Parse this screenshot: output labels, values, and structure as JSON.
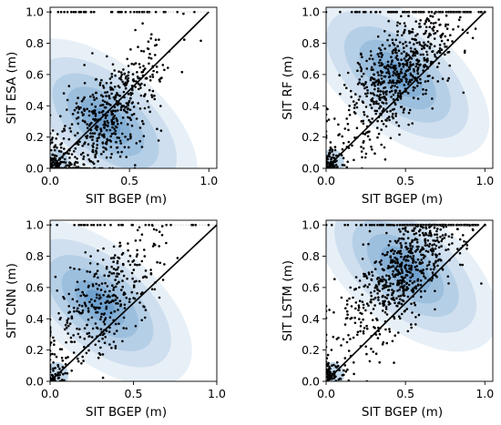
{
  "chart_data": [
    {
      "type": "scatter",
      "xlabel": "SIT BGEP (m)",
      "ylabel": "SIT ESA (m)",
      "xlim": [
        0,
        1.05
      ],
      "ylim": [
        0,
        1.03
      ],
      "x_ticks": [
        "0.0",
        "0.5",
        "1.0"
      ],
      "y_ticks": [
        "0.0",
        "0.2",
        "0.4",
        "0.6",
        "0.8",
        "1.0"
      ],
      "grid": false,
      "density_center": [
        0.35,
        0.3
      ],
      "approx_point_count": 700,
      "reference_line": [
        [
          0,
          0
        ],
        [
          1,
          1
        ]
      ],
      "point_color": "#000000",
      "density_color": "#1f6fb4"
    },
    {
      "type": "scatter",
      "xlabel": "SIT BGEP (m)",
      "ylabel": "SIT RF (m)",
      "xlim": [
        0,
        1.05
      ],
      "ylim": [
        0,
        1.03
      ],
      "x_ticks": [
        "0.0",
        "0.5",
        "1.0"
      ],
      "y_ticks": [
        "0.0",
        "0.2",
        "0.4",
        "0.6",
        "0.8",
        "1.0"
      ],
      "grid": false,
      "density_center": [
        0.45,
        0.6
      ],
      "approx_point_count": 800,
      "reference_line": [
        [
          0,
          0
        ],
        [
          1,
          1
        ]
      ],
      "point_color": "#000000",
      "density_color": "#1f6fb4"
    },
    {
      "type": "scatter",
      "xlabel": "SIT BGEP (m)",
      "ylabel": "SIT CNN (m)",
      "xlim": [
        0,
        1.0
      ],
      "ylim": [
        0,
        1.03
      ],
      "x_ticks": [
        "0.0",
        "0.5",
        "1.0"
      ],
      "y_ticks": [
        "0.0",
        "0.2",
        "0.4",
        "0.6",
        "0.8",
        "1.0"
      ],
      "grid": false,
      "density_center": [
        0.3,
        0.5
      ],
      "approx_point_count": 450,
      "reference_line": [
        [
          0,
          0
        ],
        [
          1,
          1
        ]
      ],
      "point_color": "#000000",
      "density_color": "#1f6fb4"
    },
    {
      "type": "scatter",
      "xlabel": "SIT BGEP (m)",
      "ylabel": "SIT LSTM (m)",
      "xlim": [
        0,
        1.05
      ],
      "ylim": [
        0,
        1.03
      ],
      "x_ticks": [
        "0.0",
        "0.5",
        "1.0"
      ],
      "y_ticks": [
        "0.0",
        "0.2",
        "0.4",
        "0.6",
        "0.8",
        "1.0"
      ],
      "grid": false,
      "density_center": [
        0.5,
        0.72
      ],
      "approx_point_count": 850,
      "reference_line": [
        [
          0,
          0
        ],
        [
          1,
          1
        ]
      ],
      "point_color": "#000000",
      "density_color": "#1f6fb4"
    }
  ]
}
